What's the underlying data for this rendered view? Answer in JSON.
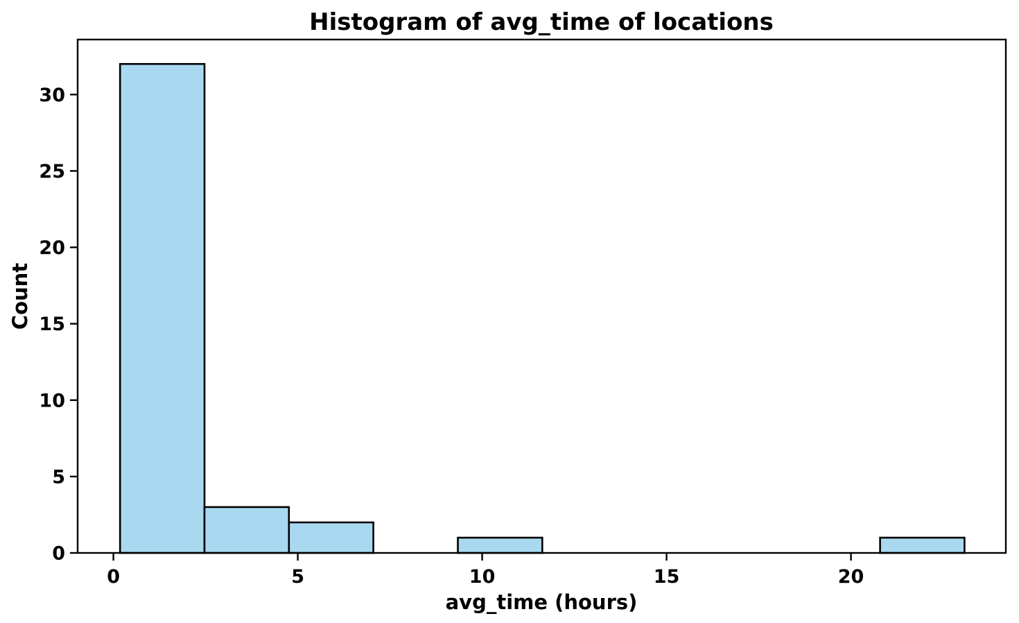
{
  "chart_data": {
    "type": "bar",
    "subtype": "histogram",
    "title": "Histogram of avg_time of locations",
    "xlabel": "avg_time (hours)",
    "ylabel": "Count",
    "x_ticks": [
      0,
      5,
      10,
      15,
      20
    ],
    "y_ticks": [
      0,
      5,
      10,
      15,
      20,
      25,
      30
    ],
    "xlim": [
      -0.97,
      24.2
    ],
    "ylim": [
      0,
      33.6
    ],
    "grid": false,
    "legend": false,
    "bins": {
      "edges": [
        0.18,
        2.47,
        4.76,
        7.05,
        9.34,
        11.63,
        13.92,
        16.21,
        18.5,
        20.79,
        23.08
      ],
      "counts": [
        32,
        3,
        2,
        0,
        1,
        0,
        0,
        0,
        0,
        1
      ]
    },
    "colors": {
      "bar_fill": "#A9D9F0",
      "bar_edge": "#000000",
      "spine": "#000000",
      "text": "#000000",
      "background": "#FFFFFF"
    }
  }
}
